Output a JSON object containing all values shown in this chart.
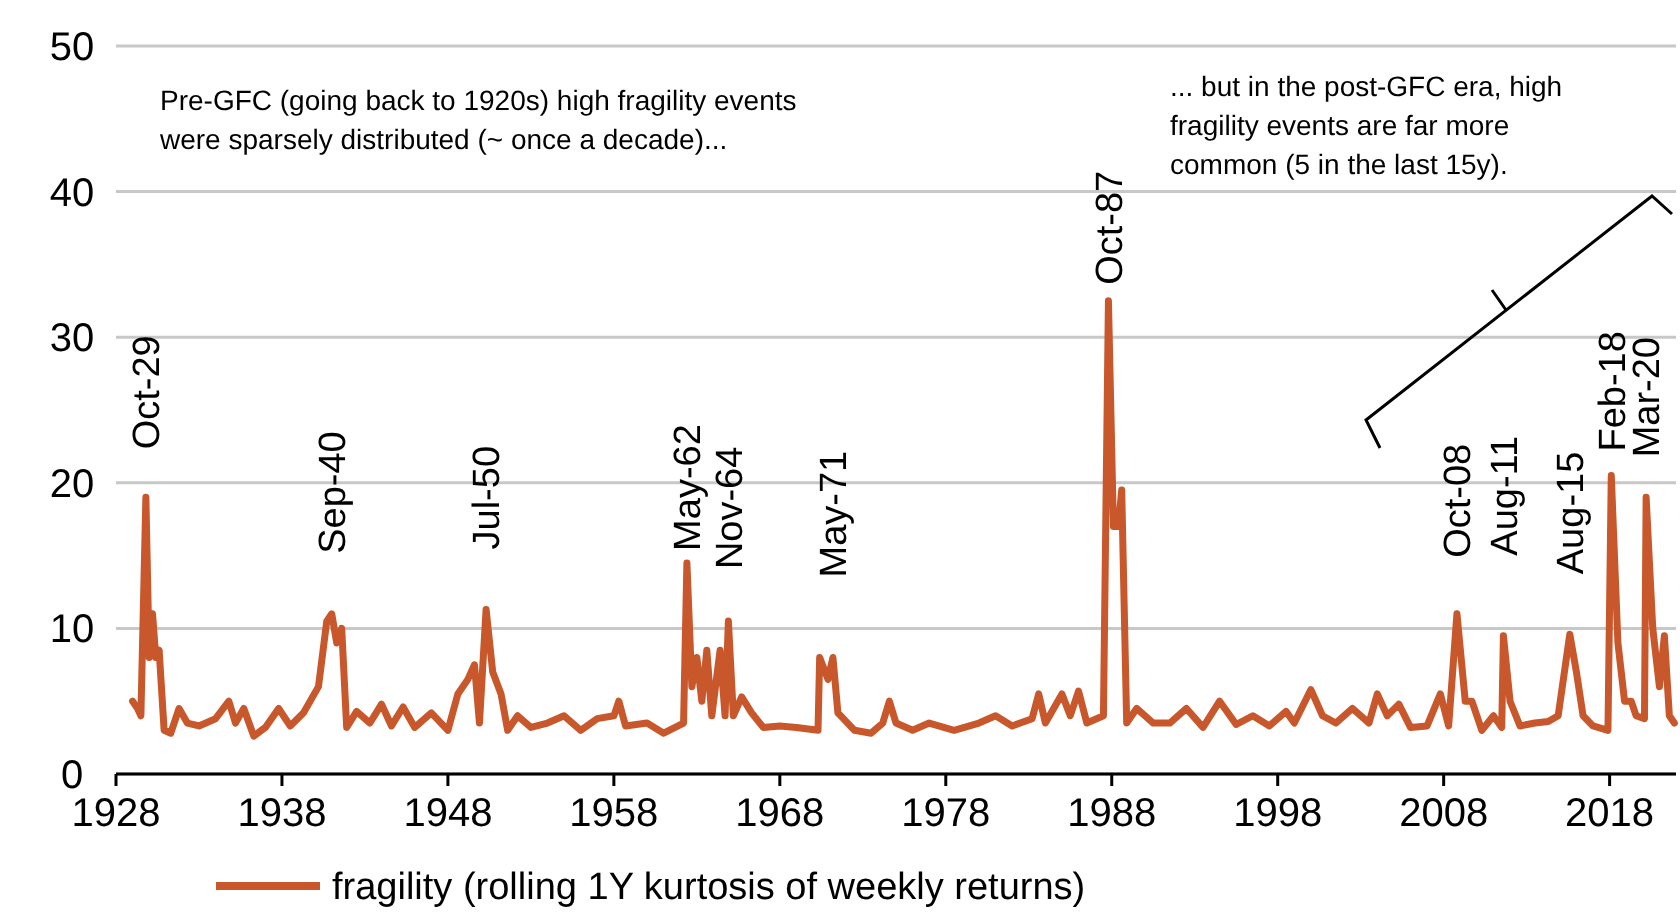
{
  "chart_data": {
    "type": "line",
    "x": [
      1929.0,
      1929.3,
      1929.5,
      1929.8,
      1930.0,
      1930.2,
      1930.4,
      1930.6,
      1930.9,
      1931.3,
      1931.8,
      1932.3,
      1933.0,
      1934.0,
      1934.8,
      1935.2,
      1935.7,
      1936.3,
      1937.0,
      1937.8,
      1938.5,
      1939.3,
      1940.2,
      1940.7,
      1941.0,
      1941.3,
      1941.6,
      1941.9,
      1942.5,
      1943.3,
      1944.0,
      1944.6,
      1945.3,
      1946.0,
      1947.0,
      1948.0,
      1948.6,
      1949.2,
      1949.6,
      1949.9,
      1950.3,
      1950.7,
      1951.2,
      1951.6,
      1952.2,
      1953.0,
      1954.0,
      1955.0,
      1956.0,
      1957.0,
      1958.0,
      1958.3,
      1958.7,
      1960.0,
      1961.0,
      1962.2,
      1962.4,
      1962.7,
      1963.0,
      1963.3,
      1963.6,
      1963.9,
      1964.4,
      1964.7,
      1964.9,
      1965.2,
      1965.7,
      1966.3,
      1967.0,
      1968.0,
      1969.0,
      1970.3,
      1970.4,
      1970.9,
      1971.2,
      1971.5,
      1972.5,
      1973.5,
      1974.2,
      1974.6,
      1975.0,
      1976.0,
      1977.0,
      1978.5,
      1980.0,
      1981.0,
      1982.0,
      1983.2,
      1983.6,
      1984.0,
      1985.0,
      1985.5,
      1986.0,
      1986.5,
      1987.5,
      1987.8,
      1988.1,
      1988.4,
      1988.6,
      1988.9,
      1989.5,
      1990.5,
      1991.5,
      1992.5,
      1993.5,
      1994.5,
      1995.5,
      1996.5,
      1997.5,
      1998.5,
      1999.0,
      2000.0,
      2000.7,
      2001.5,
      2002.5,
      2003.5,
      2004.0,
      2004.6,
      2005.3,
      2006.0,
      2007.0,
      2007.8,
      2008.3,
      2008.8,
      2009.3,
      2009.7,
      2010.3,
      2011.0,
      2011.5,
      2011.6,
      2012.0,
      2012.6,
      2013.5,
      2014.3,
      2014.9,
      2015.6,
      2016.0,
      2016.4,
      2017.0,
      2017.9,
      2018.1,
      2018.5,
      2018.9,
      2019.3,
      2019.6,
      2020.1,
      2020.2,
      2020.6,
      2021.0,
      2021.3,
      2021.6,
      2021.9
    ],
    "series": [
      {
        "name": "fragility (rolling 1Y kurtosis of weekly returns)",
        "color": "#c8572b",
        "values": [
          5,
          4.5,
          4,
          19,
          8,
          11,
          8,
          8.5,
          3,
          2.8,
          4.5,
          3.5,
          3.3,
          3.8,
          5,
          3.5,
          4.5,
          2.6,
          3.2,
          4.5,
          3.3,
          4.2,
          6,
          10.5,
          11,
          9,
          10,
          3.2,
          4.3,
          3.5,
          4.8,
          3.3,
          4.6,
          3.2,
          4.2,
          3,
          5.5,
          6.5,
          7.5,
          3.5,
          11.3,
          7,
          5.5,
          3,
          4,
          3.2,
          3.5,
          4,
          3,
          3.8,
          4,
          5,
          3.3,
          3.5,
          2.8,
          3.5,
          14.5,
          6,
          8,
          5,
          8.5,
          4,
          8.5,
          4,
          10.5,
          4,
          5.3,
          4.2,
          3.2,
          3.3,
          3.2,
          3,
          8,
          6.5,
          8,
          4.2,
          3,
          2.8,
          3.5,
          5,
          3.5,
          3,
          3.5,
          3,
          3.5,
          4,
          3.3,
          3.8,
          5.5,
          3.5,
          5.5,
          4,
          5.7,
          3.5,
          4,
          32.5,
          17,
          17,
          19.5,
          3.5,
          4.5,
          3.5,
          3.5,
          4.5,
          3.2,
          5,
          3.4,
          4,
          3.3,
          4.3,
          3.5,
          5.8,
          4,
          3.5,
          4.5,
          3.5,
          5.5,
          4,
          4.8,
          3.2,
          3.3,
          5.5,
          3.3,
          11,
          5,
          5,
          3,
          4,
          3.2,
          9.5,
          5,
          3.3,
          3.5,
          3.6,
          4,
          9.6,
          7,
          4,
          3.3,
          3,
          20.5,
          9,
          5,
          5,
          4,
          3.8,
          19,
          10,
          6,
          9.5,
          4,
          3.5
        ]
      }
    ],
    "xlim": [
      1928,
      2022
    ],
    "xticks": [
      1928,
      1938,
      1948,
      1958,
      1968,
      1978,
      1988,
      1998,
      2008,
      2018
    ],
    "ylim": [
      0,
      50
    ],
    "yticks": [
      0,
      10,
      20,
      30,
      40,
      50
    ],
    "grid": "y",
    "legend": "bottom",
    "line_style": "solid",
    "marker": "none",
    "annotations": [
      "Pre-GFC (going back to 1920s) high fragility events\nwere sparsely distributed (~ once a decade)...",
      "... but in the post-GFC era, high\nfragility events are far more\ncommon (5 in the last 15y).",
      {
        "text": "Oct-29",
        "x": 1929.8,
        "y": 19
      },
      {
        "text": "Sep-40",
        "x": 1941.0,
        "y": 11
      },
      {
        "text": "Jul-50",
        "x": 1950.3,
        "y": 11.3
      },
      {
        "text": "May-62",
        "x": 1962.4,
        "y": 14.5
      },
      {
        "text": "Nov-64",
        "x": 1964.9,
        "y": 10.5
      },
      {
        "text": "May-71",
        "x": 1971.2,
        "y": 8
      },
      {
        "text": "Oct-87",
        "x": 1987.8,
        "y": 32.5
      },
      {
        "text": "Oct-08",
        "x": 2008.8,
        "y": 11
      },
      {
        "text": "Aug-11",
        "x": 2011.6,
        "y": 9.5
      },
      {
        "text": "Aug-15",
        "x": 2015.6,
        "y": 9.6
      },
      {
        "text": "Feb-18",
        "x": 2018.1,
        "y": 20.5
      },
      {
        "text": "Mar-20",
        "x": 2020.2,
        "y": 19
      }
    ]
  }
}
